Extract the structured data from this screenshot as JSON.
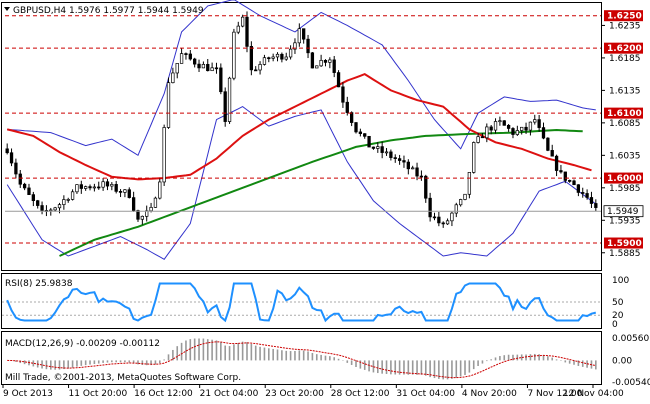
{
  "chart_data": {
    "type": "candlestick",
    "instrument_header": "GBPUSD,H4  1.5976 1.5977 1.5944 1.5949",
    "y_tick_labels": [
      "1.6235",
      "1.6185",
      "1.6135",
      "1.6085",
      "1.6035",
      "1.5985",
      "1.5935",
      "1.5885"
    ],
    "y_range": [
      1.586,
      1.6268
    ],
    "price_levels": [
      {
        "value": 1.625,
        "label": "1.6250"
      },
      {
        "value": 1.62,
        "label": "1.6200"
      },
      {
        "value": 1.61,
        "label": "1.6100"
      },
      {
        "value": 1.6,
        "label": "1.6000"
      },
      {
        "value": 1.59,
        "label": "1.5900"
      }
    ],
    "current_price": {
      "value": 1.5949,
      "label": "1.5949"
    },
    "x_tick_labels": [
      "9 Oct 2013",
      "11 Oct 20:00",
      "16 Oct 12:00",
      "21 Oct 04:00",
      "23 Oct 20:00",
      "28 Oct 12:00",
      "31 Oct 04:00",
      "4 Nov 20:00",
      "7 Nov 12:00",
      "12 Nov 04:00"
    ],
    "candle_count": 136,
    "price_anchors": [
      [
        0,
        1.6045
      ],
      [
        3,
        1.599
      ],
      [
        8,
        1.5945
      ],
      [
        12,
        1.596
      ],
      [
        16,
        1.5985
      ],
      [
        22,
        1.599
      ],
      [
        28,
        1.5975
      ],
      [
        30,
        1.5935
      ],
      [
        33,
        1.595
      ],
      [
        35,
        1.6
      ],
      [
        37,
        1.615
      ],
      [
        40,
        1.619
      ],
      [
        44,
        1.6175
      ],
      [
        48,
        1.6165
      ],
      [
        50,
        1.609
      ],
      [
        52,
        1.622
      ],
      [
        54,
        1.6245
      ],
      [
        56,
        1.6165
      ],
      [
        60,
        1.6185
      ],
      [
        64,
        1.619
      ],
      [
        67,
        1.6225
      ],
      [
        70,
        1.6175
      ],
      [
        74,
        1.6185
      ],
      [
        77,
        1.612
      ],
      [
        80,
        1.6075
      ],
      [
        83,
        1.605
      ],
      [
        86,
        1.604
      ],
      [
        89,
        1.603
      ],
      [
        92,
        1.6015
      ],
      [
        95,
        1.6
      ],
      [
        97,
        1.5945
      ],
      [
        100,
        1.5925
      ],
      [
        103,
        1.5955
      ],
      [
        105,
        1.597
      ],
      [
        107,
        1.605
      ],
      [
        110,
        1.6075
      ],
      [
        113,
        1.6085
      ],
      [
        116,
        1.607
      ],
      [
        119,
        1.6075
      ],
      [
        121,
        1.609
      ],
      [
        124,
        1.604
      ],
      [
        127,
        1.6005
      ],
      [
        130,
        1.599
      ],
      [
        133,
        1.597
      ],
      [
        135,
        1.5949
      ]
    ],
    "ma_fast_points": [
      [
        0,
        1.6075
      ],
      [
        6,
        1.6065
      ],
      [
        12,
        1.604
      ],
      [
        18,
        1.602
      ],
      [
        24,
        1.6002
      ],
      [
        30,
        1.5998
      ],
      [
        36,
        1.6
      ],
      [
        42,
        1.6005
      ],
      [
        48,
        1.603
      ],
      [
        54,
        1.6065
      ],
      [
        60,
        1.609
      ],
      [
        66,
        1.611
      ],
      [
        72,
        1.613
      ],
      [
        78,
        1.615
      ],
      [
        82,
        1.616
      ],
      [
        88,
        1.6135
      ],
      [
        94,
        1.612
      ],
      [
        100,
        1.611
      ],
      [
        106,
        1.6075
      ],
      [
        112,
        1.6055
      ],
      [
        118,
        1.6045
      ],
      [
        124,
        1.603
      ],
      [
        130,
        1.602
      ],
      [
        134,
        1.6012
      ]
    ],
    "ma_slow_points": [
      [
        12,
        1.588
      ],
      [
        20,
        1.5905
      ],
      [
        30,
        1.5925
      ],
      [
        40,
        1.595
      ],
      [
        50,
        1.5975
      ],
      [
        60,
        1.6
      ],
      [
        70,
        1.6025
      ],
      [
        80,
        1.6048
      ],
      [
        88,
        1.6058
      ],
      [
        96,
        1.6065
      ],
      [
        106,
        1.6068
      ],
      [
        116,
        1.607
      ],
      [
        126,
        1.6074
      ],
      [
        132,
        1.6072
      ]
    ],
    "bb_upper_points": [
      [
        0,
        1.6075
      ],
      [
        10,
        1.607
      ],
      [
        18,
        1.605
      ],
      [
        24,
        1.606
      ],
      [
        30,
        1.6035
      ],
      [
        36,
        1.613
      ],
      [
        40,
        1.6225
      ],
      [
        46,
        1.6265
      ],
      [
        52,
        1.6275
      ],
      [
        58,
        1.625
      ],
      [
        66,
        1.6225
      ],
      [
        72,
        1.6255
      ],
      [
        78,
        1.6235
      ],
      [
        86,
        1.6205
      ],
      [
        92,
        1.615
      ],
      [
        98,
        1.609
      ],
      [
        104,
        1.6045
      ],
      [
        108,
        1.61
      ],
      [
        114,
        1.6125
      ],
      [
        120,
        1.6118
      ],
      [
        126,
        1.612
      ],
      [
        132,
        1.6108
      ],
      [
        135,
        1.6105
      ]
    ],
    "bb_lower_points": [
      [
        0,
        1.599
      ],
      [
        8,
        1.5905
      ],
      [
        14,
        1.588
      ],
      [
        20,
        1.5895
      ],
      [
        26,
        1.591
      ],
      [
        32,
        1.589
      ],
      [
        36,
        1.5875
      ],
      [
        42,
        1.593
      ],
      [
        48,
        1.609
      ],
      [
        54,
        1.611
      ],
      [
        60,
        1.608
      ],
      [
        66,
        1.6095
      ],
      [
        72,
        1.6105
      ],
      [
        78,
        1.6025
      ],
      [
        84,
        1.5965
      ],
      [
        90,
        1.593
      ],
      [
        96,
        1.59
      ],
      [
        100,
        1.588
      ],
      [
        104,
        1.5885
      ],
      [
        110,
        1.588
      ],
      [
        116,
        1.5915
      ],
      [
        122,
        1.598
      ],
      [
        128,
        1.5995
      ],
      [
        135,
        1.596
      ]
    ],
    "rsi": {
      "label": "RSI(8) 25.9838",
      "period": 8,
      "value": 25.9838,
      "levels": [
        100,
        50,
        20,
        0
      ],
      "tick_labels": [
        "100",
        "50",
        "20",
        "0"
      ]
    },
    "macd": {
      "label": "MACD(12,26,9) -0.00209 -0.00112",
      "main": -0.00209,
      "signal": -0.00112,
      "tick_labels": [
        "0.00560",
        "0.00",
        "-0.00540"
      ],
      "range": [
        -0.0054,
        0.0056
      ]
    },
    "copyright": "Mill Trade, ©2001-2013, MetaQuotes Software Corp.",
    "colors": {
      "level_line": "#cc0000",
      "level_label_bg": "#cc0000",
      "current_price_bg": "#ffffff",
      "ma_fast": "#dd1111",
      "ma_slow": "#118811",
      "bollinger": "#3333cc",
      "candle": "#000000",
      "rsi_line": "#1e90ff",
      "macd_hist": "#999999",
      "macd_signal": "#cc0000"
    }
  }
}
